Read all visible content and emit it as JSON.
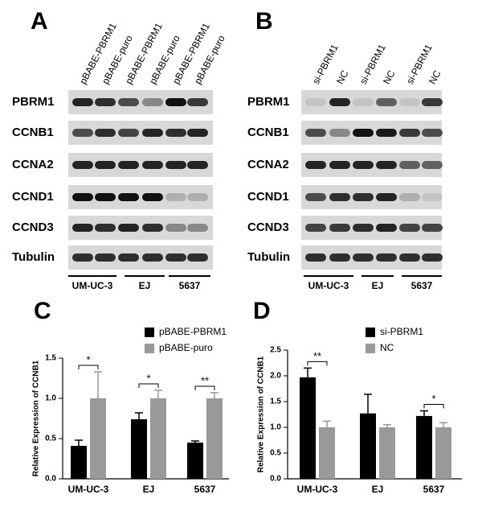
{
  "blots": [
    {
      "label": "A",
      "lanes": [
        "pBABE-PBRM1",
        "pBABE-puro",
        "pBABE-PBRM1",
        "pBABE-puro",
        "pBABE-PBRM1",
        "pBABE-puro"
      ],
      "rows": [
        "PBRM1",
        "CCNB1",
        "CCNA2",
        "CCND1",
        "CCND3",
        "Tubulin"
      ],
      "groups": [
        "UM-UC-3",
        "EJ",
        "5637"
      ]
    },
    {
      "label": "B",
      "lanes": [
        "si-PBRM1",
        "NC",
        "si-PBRM1",
        "NC",
        "si-PBRM1",
        "NC"
      ],
      "rows": [
        "PBRM1",
        "CCNB1",
        "CCNA2",
        "CCND1",
        "CCND3",
        "Tubulin"
      ],
      "groups": [
        "UM-UC-3",
        "EJ",
        "5637"
      ]
    }
  ],
  "chart_data": [
    {
      "type": "bar",
      "panel": "C",
      "ylabel": "Relative Expression of CCNB1",
      "categories": [
        "UM-UC-3",
        "EJ",
        "5637"
      ],
      "series": [
        {
          "name": "pBABE-PBRM1",
          "color": "#000000",
          "values": [
            0.41,
            0.74,
            0.45
          ],
          "errors": [
            0.07,
            0.08,
            0.02
          ]
        },
        {
          "name": "pBABE-puro",
          "color": "#999999",
          "values": [
            1.0,
            1.0,
            1.0
          ],
          "errors": [
            0.33,
            0.1,
            0.07
          ]
        }
      ],
      "annotations": [
        "*",
        "*",
        "**"
      ],
      "ylim": [
        0,
        1.5
      ],
      "yticks": [
        {
          "value": 0,
          "label": "0.0"
        },
        {
          "value": 0.5,
          "label": "0.5"
        },
        {
          "value": 1,
          "label": "1.0"
        },
        {
          "value": 1.5,
          "label": "1.5"
        }
      ]
    },
    {
      "type": "bar",
      "panel": "D",
      "ylabel": "Relative Expression of CCNB1",
      "categories": [
        "UM-UC-3",
        "EJ",
        "5637"
      ],
      "series": [
        {
          "name": "si-PBRM1",
          "color": "#000000",
          "values": [
            1.97,
            1.27,
            1.22
          ],
          "errors": [
            0.18,
            0.37,
            0.1
          ]
        },
        {
          "name": "NC",
          "color": "#999999",
          "values": [
            1.0,
            1.0,
            1.0
          ],
          "errors": [
            0.12,
            0.05,
            0.09
          ]
        }
      ],
      "annotations": [
        "**",
        null,
        "*"
      ],
      "ylim": [
        0,
        2.5
      ],
      "yticks": [
        {
          "value": 0,
          "label": "0.0"
        },
        {
          "value": 0.5,
          "label": "0.5"
        },
        {
          "value": 1,
          "label": "1.0"
        },
        {
          "value": 1.5,
          "label": "1.5"
        },
        {
          "value": 2,
          "label": "2.0"
        },
        {
          "value": 2.5,
          "label": "2.5"
        }
      ]
    }
  ]
}
